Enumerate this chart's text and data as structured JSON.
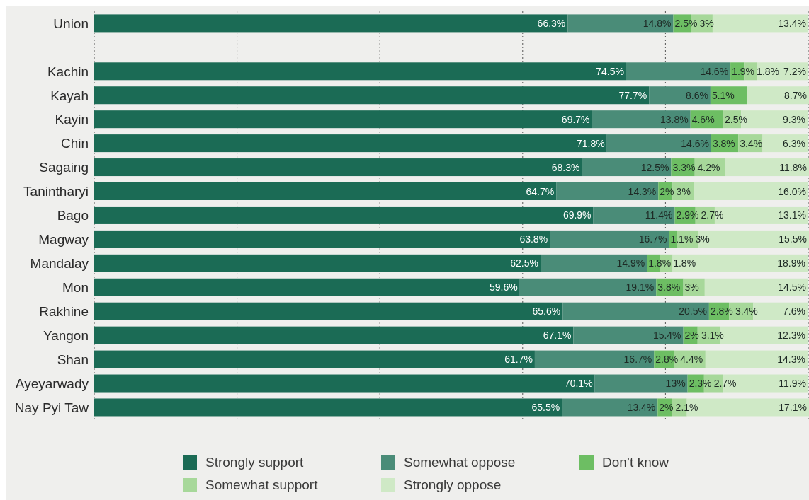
{
  "chart_data": {
    "type": "bar",
    "orientation": "horizontal",
    "stacked": true,
    "grid": "x",
    "legend": "bottom",
    "tick_labels": "y",
    "xlim": [
      0,
      100.1
    ],
    "xticks": [
      {
        "value": 20,
        "label": null
      },
      {
        "value": 40,
        "label": null
      },
      {
        "value": 60,
        "label": null
      },
      {
        "value": 80,
        "label": null
      }
    ],
    "categories": [
      "Union",
      null,
      "Kachin",
      "Kayah",
      "Kayin",
      "Chin",
      "Sagaing",
      "Tanintharyi",
      "Bago",
      "Magway",
      "Mandalay",
      "Mon",
      "Rakhine",
      "Yangon",
      "Shan",
      "Ayeyarwady",
      "Nay Pyi Taw"
    ],
    "series": [
      {
        "name": "Strongly support",
        "color": "#1b6b55",
        "values": [
          66.3,
          null,
          74.5,
          77.7,
          69.7,
          71.8,
          68.3,
          64.7,
          69.9,
          63.8,
          62.5,
          59.6,
          65.6,
          67.1,
          61.7,
          70.1,
          65.5
        ],
        "value_labels": [
          "66.3%",
          null,
          "74.5%",
          "77.7%",
          "69.7%",
          "71.8%",
          "68.3%",
          "64.7%",
          "69.9%",
          "63.8%",
          "62.5%",
          "59.6%",
          "65.6%",
          "67.1%",
          "61.7%",
          "70.1%",
          "65.5%"
        ]
      },
      {
        "name": "Somewhat oppose",
        "color": "#4a8c78",
        "values": [
          14.8,
          null,
          14.6,
          8.6,
          13.8,
          14.6,
          12.5,
          14.3,
          11.4,
          16.7,
          14.9,
          19.1,
          20.5,
          15.4,
          16.7,
          13,
          13.4
        ],
        "value_labels": [
          "14.8%",
          null,
          "14.6%",
          "8.6%",
          "13.8%",
          "14.6%",
          "12.5%",
          "14.3%",
          "11.4%",
          "16.7%",
          "14.9%",
          "19.1%",
          "20.5%",
          "15.4%",
          "16.7%",
          "13%",
          "13.4%"
        ]
      },
      {
        "name": "Don’t know",
        "color": "#6dbe63",
        "values": [
          2.5,
          null,
          1.9,
          5.1,
          4.6,
          3.8,
          3.3,
          2,
          2.9,
          1.1,
          1.8,
          3.8,
          2.8,
          2,
          2.8,
          2.3,
          2
        ],
        "value_labels": [
          "2.5%",
          null,
          "1.9%",
          "5.1%",
          "4.6%",
          "3.8%",
          "3.3%",
          "2%",
          "2.9%",
          "1.1%",
          "1.8%",
          "3.8%",
          "2.8%",
          "2%",
          "2.8%",
          "2.3%",
          "2%"
        ]
      },
      {
        "name": "Somewhat support",
        "color": "#a7d89a",
        "values": [
          3,
          null,
          1.8,
          null,
          2.5,
          3.4,
          4.2,
          3,
          2.7,
          3,
          1.8,
          3,
          3.4,
          3.1,
          4.4,
          2.7,
          2.1
        ],
        "value_labels": [
          "3%",
          null,
          "1.8%",
          null,
          "2.5%",
          "3.4%",
          "4.2%",
          "3%",
          "2.7%",
          "3%",
          "1.8%",
          "3%",
          "3.4%",
          "3.1%",
          "4.4%",
          "2.7%",
          "2.1%"
        ]
      },
      {
        "name": "Strongly oppose",
        "color": "#cfe9c6",
        "values": [
          13.4,
          null,
          7.2,
          8.7,
          9.3,
          6.3,
          11.8,
          16.0,
          13.1,
          15.5,
          18.9,
          14.5,
          7.6,
          12.3,
          14.3,
          11.9,
          17.1
        ],
        "value_labels": [
          "13.4%",
          null,
          "7.2%",
          "8.7%",
          "9.3%",
          "6.3%",
          "11.8%",
          "16.0%",
          "13.1%",
          "15.5%",
          "18.9%",
          "14.5%",
          "7.6%",
          "12.3%",
          "14.3%",
          "11.9%",
          "17.1%"
        ]
      }
    ]
  }
}
